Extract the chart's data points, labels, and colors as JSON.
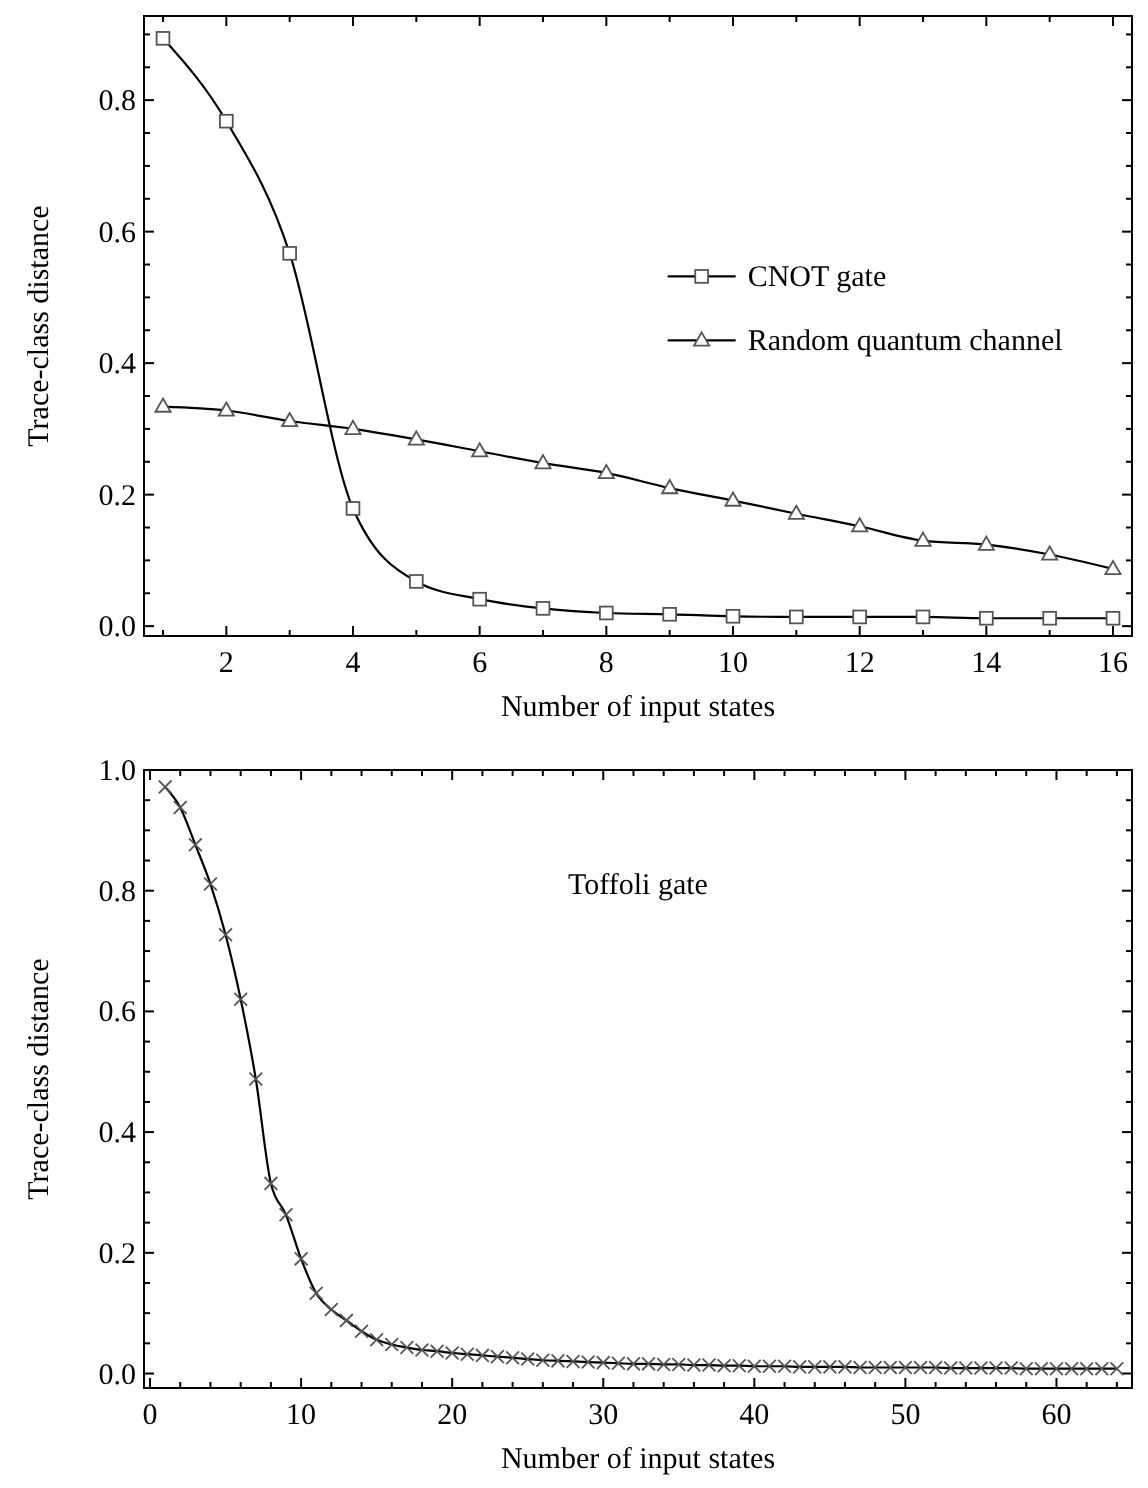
{
  "chart_data": [
    {
      "type": "line",
      "xlabel": "Number of input states",
      "ylabel": "Trace-class distance",
      "x": [
        1,
        2,
        3,
        4,
        5,
        6,
        7,
        8,
        9,
        10,
        11,
        12,
        13,
        14,
        15,
        16
      ],
      "xlim": [
        0.7,
        16.3
      ],
      "ylim": [
        -0.015,
        0.928
      ],
      "xticks": [
        {
          "value": 1,
          "label": null
        },
        2,
        {
          "value": 3,
          "label": null
        },
        4,
        {
          "value": 5,
          "label": null
        },
        6,
        {
          "value": 7,
          "label": null
        },
        8,
        {
          "value": 9,
          "label": null
        },
        10,
        {
          "value": 11,
          "label": null
        },
        12,
        {
          "value": 13,
          "label": null
        },
        14,
        {
          "value": 15,
          "label": null
        },
        16
      ],
      "yticks": [
        {
          "value": 0,
          "label": "0.0"
        },
        {
          "value": 0.05,
          "label": null
        },
        {
          "value": 0.1,
          "label": null
        },
        {
          "value": 0.15,
          "label": null
        },
        0.2,
        {
          "value": 0.25,
          "label": null
        },
        {
          "value": 0.3,
          "label": null
        },
        {
          "value": 0.35,
          "label": null
        },
        0.4,
        {
          "value": 0.45,
          "label": null
        },
        {
          "value": 0.5,
          "label": null
        },
        {
          "value": 0.55,
          "label": null
        },
        0.6,
        {
          "value": 0.65,
          "label": null
        },
        {
          "value": 0.7,
          "label": null
        },
        {
          "value": 0.75,
          "label": null
        },
        0.8,
        {
          "value": 0.85,
          "label": null
        },
        {
          "value": 0.9,
          "label": null
        }
      ],
      "legend": "right",
      "grid": false,
      "series": [
        {
          "name": "CNOT gate",
          "color": "#000000",
          "marker": "square",
          "values": [
            0.894,
            0.768,
            0.567,
            0.179,
            0.068,
            0.041,
            0.027,
            0.02,
            0.018,
            0.015,
            0.014,
            0.014,
            0.014,
            0.012,
            0.012,
            0.012
          ]
        },
        {
          "name": "Random quantum channel",
          "color": "#000000",
          "marker": "triangle",
          "values": [
            0.334,
            0.328,
            0.312,
            0.3,
            0.284,
            0.266,
            0.248,
            0.233,
            0.21,
            0.191,
            0.171,
            0.152,
            0.13,
            0.124,
            0.109,
            0.087
          ]
        }
      ]
    },
    {
      "type": "line",
      "xlabel": "Number of input states",
      "ylabel": "Trace-class distance",
      "x": [
        1,
        2,
        3,
        4,
        5,
        6,
        7,
        8,
        9,
        10,
        11,
        12,
        13,
        14,
        15,
        16,
        17,
        18,
        19,
        20,
        21,
        22,
        23,
        24,
        25,
        26,
        27,
        28,
        29,
        30,
        31,
        32,
        33,
        34,
        35,
        36,
        37,
        38,
        39,
        40,
        41,
        42,
        43,
        44,
        45,
        46,
        47,
        48,
        49,
        50,
        51,
        52,
        53,
        54,
        55,
        56,
        57,
        58,
        59,
        60,
        61,
        62,
        63,
        64
      ],
      "xlim": [
        -0.4,
        65
      ],
      "ylim": [
        -0.024,
        1.0
      ],
      "xticks": [
        0,
        {
          "value": 2,
          "label": null
        },
        {
          "value": 4,
          "label": null
        },
        {
          "value": 6,
          "label": null
        },
        {
          "value": 8,
          "label": null
        },
        10,
        {
          "value": 12,
          "label": null
        },
        {
          "value": 14,
          "label": null
        },
        {
          "value": 16,
          "label": null
        },
        {
          "value": 18,
          "label": null
        },
        20,
        {
          "value": 22,
          "label": null
        },
        {
          "value": 24,
          "label": null
        },
        {
          "value": 26,
          "label": null
        },
        {
          "value": 28,
          "label": null
        },
        30,
        {
          "value": 32,
          "label": null
        },
        {
          "value": 34,
          "label": null
        },
        {
          "value": 36,
          "label": null
        },
        {
          "value": 38,
          "label": null
        },
        40,
        {
          "value": 42,
          "label": null
        },
        {
          "value": 44,
          "label": null
        },
        {
          "value": 46,
          "label": null
        },
        {
          "value": 48,
          "label": null
        },
        50,
        {
          "value": 52,
          "label": null
        },
        {
          "value": 54,
          "label": null
        },
        {
          "value": 56,
          "label": null
        },
        {
          "value": 58,
          "label": null
        },
        60,
        {
          "value": 62,
          "label": null
        },
        {
          "value": 64,
          "label": null
        }
      ],
      "yticks": [
        {
          "value": 0,
          "label": "0.0"
        },
        {
          "value": 0.05,
          "label": null
        },
        {
          "value": 0.1,
          "label": null
        },
        {
          "value": 0.15,
          "label": null
        },
        0.2,
        {
          "value": 0.25,
          "label": null
        },
        {
          "value": 0.3,
          "label": null
        },
        {
          "value": 0.35,
          "label": null
        },
        0.4,
        {
          "value": 0.45,
          "label": null
        },
        {
          "value": 0.5,
          "label": null
        },
        {
          "value": 0.55,
          "label": null
        },
        0.6,
        {
          "value": 0.65,
          "label": null
        },
        {
          "value": 0.7,
          "label": null
        },
        {
          "value": 0.75,
          "label": null
        },
        0.8,
        {
          "value": 0.85,
          "label": null
        },
        {
          "value": 0.9,
          "label": null
        },
        {
          "value": 0.95,
          "label": null
        },
        {
          "value": 1,
          "label": "1.0"
        }
      ],
      "legend": false,
      "grid": false,
      "series": [
        {
          "name": "Toffoli gate",
          "color": "#000000",
          "marker": "cross",
          "values": [
            0.972,
            0.938,
            0.876,
            0.811,
            0.727,
            0.62,
            0.488,
            0.315,
            0.263,
            0.19,
            0.133,
            0.106,
            0.088,
            0.07,
            0.056,
            0.048,
            0.043,
            0.039,
            0.037,
            0.034,
            0.032,
            0.03,
            0.028,
            0.026,
            0.024,
            0.022,
            0.021,
            0.02,
            0.019,
            0.018,
            0.017,
            0.016,
            0.016,
            0.015,
            0.015,
            0.014,
            0.014,
            0.013,
            0.013,
            0.012,
            0.012,
            0.012,
            0.011,
            0.011,
            0.011,
            0.011,
            0.01,
            0.01,
            0.01,
            0.01,
            0.01,
            0.01,
            0.009,
            0.009,
            0.009,
            0.009,
            0.009,
            0.008,
            0.008,
            0.008,
            0.008,
            0.008,
            0.008,
            0.008
          ]
        }
      ]
    }
  ]
}
